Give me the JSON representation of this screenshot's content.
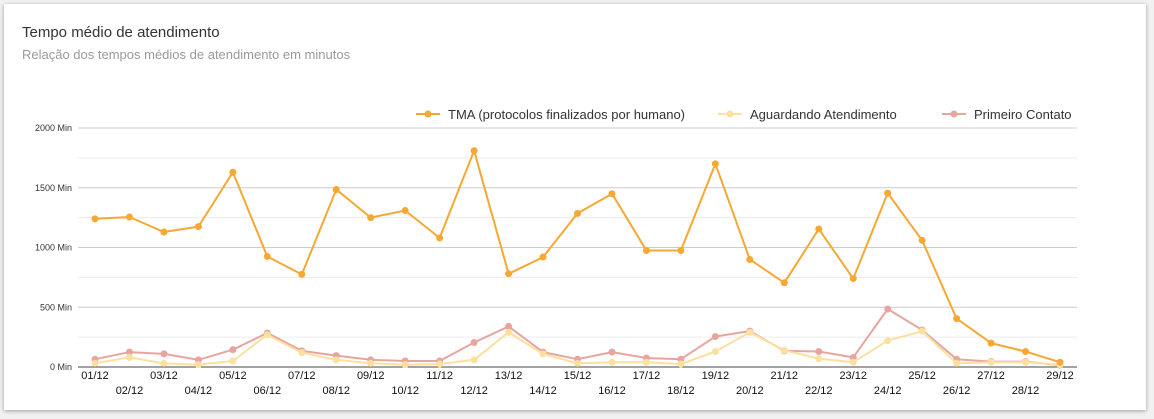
{
  "card": {
    "title": "Tempo médio de atendimento",
    "subtitle": "Relação dos tempos médios de atendimento em minutos"
  },
  "chart_data": {
    "type": "line",
    "title": "Tempo médio de atendimento",
    "subtitle": "Relação dos tempos médios de atendimento em minutos",
    "xlabel": "",
    "ylabel": "",
    "ylim": [
      0,
      2000
    ],
    "y_ticks": [
      "0 Min",
      "500 Min",
      "1000 Min",
      "1500 Min",
      "2000 Min"
    ],
    "grid": true,
    "legend_position": "top-right",
    "categories": [
      "01/12",
      "02/12",
      "03/12",
      "04/12",
      "05/12",
      "06/12",
      "07/12",
      "08/12",
      "09/12",
      "10/12",
      "11/12",
      "12/12",
      "13/12",
      "14/12",
      "15/12",
      "16/12",
      "17/12",
      "18/12",
      "19/12",
      "20/12",
      "21/12",
      "22/12",
      "23/12",
      "24/12",
      "25/12",
      "26/12",
      "27/12",
      "28/12",
      "29/12"
    ],
    "series": [
      {
        "name": "TMA (protocolos finalizados por humano)",
        "color": "#f5a833",
        "values": [
          1240,
          1255,
          1130,
          1175,
          1630,
          925,
          775,
          1485,
          1250,
          1310,
          1080,
          1810,
          780,
          920,
          1285,
          1450,
          975,
          975,
          1700,
          900,
          705,
          1155,
          740,
          1455,
          1060,
          405,
          200,
          130,
          40
        ]
      },
      {
        "name": "Aguardando Atendimento",
        "color": "#fbe0a0",
        "values": [
          30,
          80,
          30,
          20,
          50,
          270,
          120,
          60,
          30,
          20,
          25,
          60,
          290,
          110,
          30,
          40,
          40,
          25,
          130,
          290,
          140,
          70,
          40,
          220,
          300,
          30,
          40,
          40,
          20
        ]
      },
      {
        "name": "Primeiro Contato",
        "color": "#e8a5a0",
        "values": [
          65,
          125,
          110,
          60,
          145,
          285,
          135,
          95,
          60,
          50,
          50,
          205,
          340,
          125,
          65,
          125,
          75,
          65,
          255,
          300,
          135,
          130,
          80,
          485,
          310,
          65,
          45,
          45,
          15
        ]
      }
    ]
  }
}
